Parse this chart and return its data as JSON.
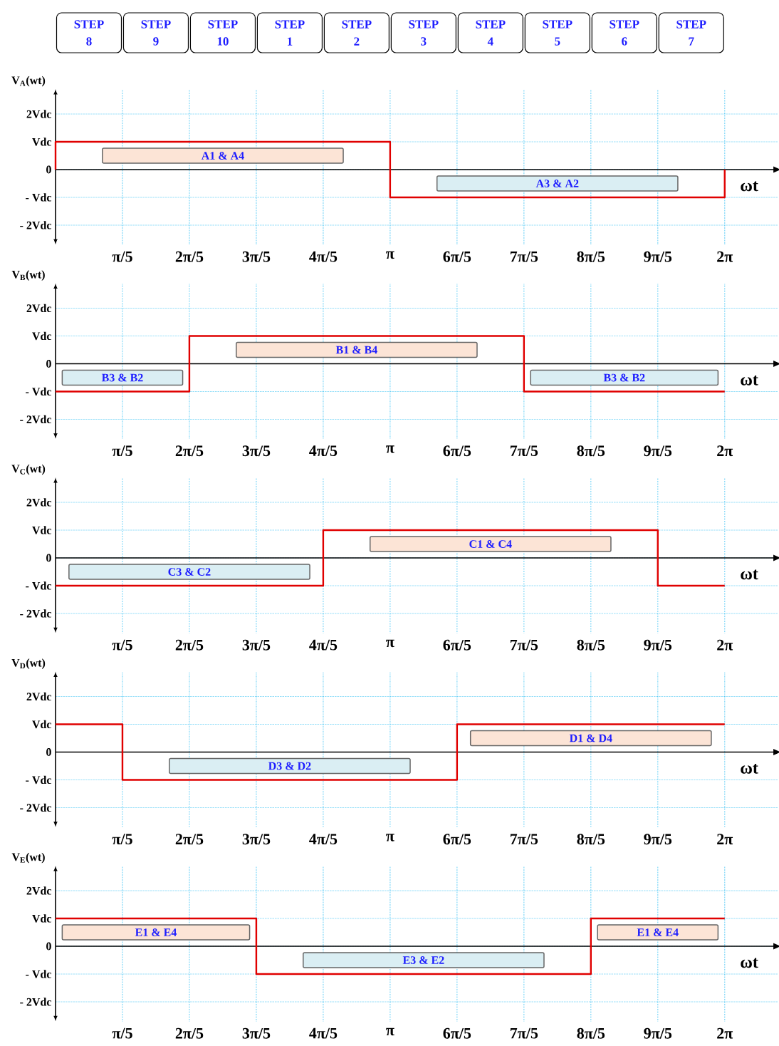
{
  "chart_data": [
    {
      "type": "step",
      "ylabel": "V$_{A}$(wt)",
      "xlabel": "ωt",
      "xlim": [
        0,
        6.78
      ],
      "ylim": [
        -2.7,
        2.9
      ],
      "xticks": [
        {
          "value": 0.6283,
          "label": "π/5"
        },
        {
          "value": 1.2566,
          "label": "2π/5"
        },
        {
          "value": 1.885,
          "label": "3π/5"
        },
        {
          "value": 2.5133,
          "label": "4π/5"
        },
        {
          "value": 3.1416,
          "label": "π"
        },
        {
          "value": 3.7699,
          "label": "6π/5"
        },
        {
          "value": 4.3982,
          "label": "7π/5"
        },
        {
          "value": 5.0265,
          "label": "8π/5"
        },
        {
          "value": 5.6549,
          "label": "9π/5"
        },
        {
          "value": 6.2832,
          "label": "2π"
        }
      ],
      "yticks": [
        {
          "value": -2,
          "label": "- 2Vdc"
        },
        {
          "value": -1,
          "label": "- Vdc"
        },
        0,
        {
          "value": 1,
          "label": "Vdc"
        },
        {
          "value": 2,
          "label": "2Vdc"
        }
      ],
      "grid": true,
      "series": [
        {
          "color": "#e00000",
          "x": [
            0,
            0,
            3.1416,
            6.2832,
            6.2832
          ],
          "values": [
            0,
            1,
            -1,
            -1,
            0
          ]
        }
      ],
      "annotations": [
        "STEP 8",
        "STEP 9",
        "STEP 10",
        "STEP 1",
        "STEP 2",
        "STEP 3",
        "STEP 4",
        "STEP 5",
        "STEP 6",
        "STEP 7",
        "A1 & A4",
        "A3 & A2"
      ]
    },
    {
      "type": "step",
      "ylabel": "V$_{B}$(wt)",
      "xlabel": "ωt",
      "xlim": [
        0,
        6.78
      ],
      "ylim": [
        -2.7,
        2.9
      ],
      "xticks": [
        {
          "value": 0.6283,
          "label": "π/5"
        },
        {
          "value": 1.2566,
          "label": "2π/5"
        },
        {
          "value": 1.885,
          "label": "3π/5"
        },
        {
          "value": 2.5133,
          "label": "4π/5"
        },
        {
          "value": 3.1416,
          "label": "π"
        },
        {
          "value": 3.7699,
          "label": "6π/5"
        },
        {
          "value": 4.3982,
          "label": "7π/5"
        },
        {
          "value": 5.0265,
          "label": "8π/5"
        },
        {
          "value": 5.6549,
          "label": "9π/5"
        },
        {
          "value": 6.2832,
          "label": "2π"
        }
      ],
      "yticks": [
        {
          "value": -2,
          "label": "- 2Vdc"
        },
        {
          "value": -1,
          "label": "- Vdc"
        },
        0,
        {
          "value": 1,
          "label": "Vdc"
        },
        {
          "value": 2,
          "label": "2Vdc"
        }
      ],
      "grid": true,
      "series": [
        {
          "color": "#e00000",
          "x": [
            0,
            1.2566,
            4.3982,
            6.2832
          ],
          "values": [
            -1,
            1,
            -1,
            -1
          ]
        }
      ],
      "annotations": [
        "B3 & B2",
        "B1 & B4",
        "B3 & B2"
      ]
    },
    {
      "type": "step",
      "ylabel": "V$_{C}$(wt)",
      "xlabel": "ωt",
      "xlim": [
        0,
        6.78
      ],
      "ylim": [
        -2.7,
        2.9
      ],
      "xticks": [
        {
          "value": 0.6283,
          "label": "π/5"
        },
        {
          "value": 1.2566,
          "label": "2π/5"
        },
        {
          "value": 1.885,
          "label": "3π/5"
        },
        {
          "value": 2.5133,
          "label": "4π/5"
        },
        {
          "value": 3.1416,
          "label": "π"
        },
        {
          "value": 3.7699,
          "label": "6π/5"
        },
        {
          "value": 4.3982,
          "label": "7π/5"
        },
        {
          "value": 5.0265,
          "label": "8π/5"
        },
        {
          "value": 5.6549,
          "label": "9π/5"
        },
        {
          "value": 6.2832,
          "label": "2π"
        }
      ],
      "yticks": [
        {
          "value": -2,
          "label": "- 2Vdc"
        },
        {
          "value": -1,
          "label": "- Vdc"
        },
        0,
        {
          "value": 1,
          "label": "Vdc"
        },
        {
          "value": 2,
          "label": "2Vdc"
        }
      ],
      "grid": true,
      "series": [
        {
          "color": "#e00000",
          "x": [
            0,
            2.5133,
            5.6549,
            6.2832
          ],
          "values": [
            -1,
            1,
            -1,
            -1
          ]
        }
      ],
      "annotations": [
        "C3 & C2",
        "C1 & C4"
      ]
    },
    {
      "type": "step",
      "ylabel": "V$_{D}$(wt)",
      "xlabel": "ωt",
      "xlim": [
        0,
        6.78
      ],
      "ylim": [
        -2.7,
        2.9
      ],
      "xticks": [
        {
          "value": 0.6283,
          "label": "π/5"
        },
        {
          "value": 1.2566,
          "label": "2π/5"
        },
        {
          "value": 1.885,
          "label": "3π/5"
        },
        {
          "value": 2.5133,
          "label": "4π/5"
        },
        {
          "value": 3.1416,
          "label": "π"
        },
        {
          "value": 3.7699,
          "label": "6π/5"
        },
        {
          "value": 4.3982,
          "label": "7π/5"
        },
        {
          "value": 5.0265,
          "label": "8π/5"
        },
        {
          "value": 5.6549,
          "label": "9π/5"
        },
        {
          "value": 6.2832,
          "label": "2π"
        }
      ],
      "yticks": [
        {
          "value": -2,
          "label": "- 2Vdc"
        },
        {
          "value": -1,
          "label": "- Vdc"
        },
        0,
        {
          "value": 1,
          "label": "Vdc"
        },
        {
          "value": 2,
          "label": "2Vdc"
        }
      ],
      "grid": true,
      "series": [
        {
          "color": "#e00000",
          "x": [
            0,
            0.6283,
            3.7699,
            6.2832
          ],
          "values": [
            1,
            -1,
            1,
            1
          ]
        }
      ],
      "annotations": [
        "D3 & D2",
        "D1 & D4"
      ]
    },
    {
      "type": "step",
      "ylabel": "V$_{E}$(wt)",
      "xlabel": "ωt",
      "xlim": [
        0,
        6.78
      ],
      "ylim": [
        -2.7,
        2.9
      ],
      "xticks": [
        {
          "value": 0.6283,
          "label": "π/5"
        },
        {
          "value": 1.2566,
          "label": "2π/5"
        },
        {
          "value": 1.885,
          "label": "3π/5"
        },
        {
          "value": 2.5133,
          "label": "4π/5"
        },
        {
          "value": 3.1416,
          "label": "π"
        },
        {
          "value": 3.7699,
          "label": "6π/5"
        },
        {
          "value": 4.3982,
          "label": "7π/5"
        },
        {
          "value": 5.0265,
          "label": "8π/5"
        },
        {
          "value": 5.6549,
          "label": "9π/5"
        },
        {
          "value": 6.2832,
          "label": "2π"
        }
      ],
      "yticks": [
        {
          "value": -2,
          "label": "- 2Vdc"
        },
        {
          "value": -1,
          "label": "- Vdc"
        },
        0,
        {
          "value": 1,
          "label": "Vdc"
        },
        {
          "value": 2,
          "label": "2Vdc"
        }
      ],
      "grid": true,
      "series": [
        {
          "color": "#e00000",
          "x": [
            0,
            1.885,
            5.0265,
            6.2832
          ],
          "values": [
            1,
            -1,
            1,
            1
          ]
        }
      ],
      "annotations": [
        "E1 & E4",
        "E3 & E2",
        "E1 & E4"
      ]
    }
  ]
}
